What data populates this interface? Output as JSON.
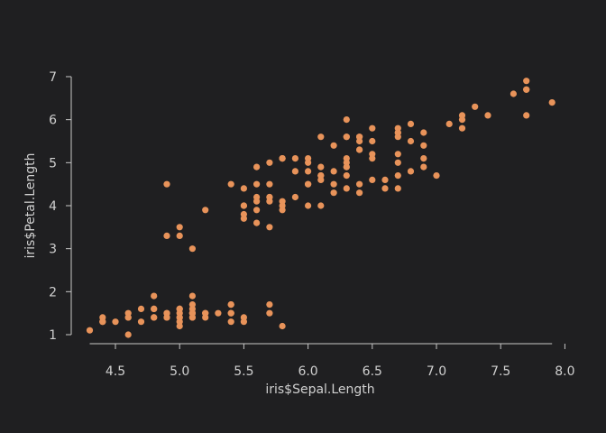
{
  "chart_data": {
    "type": "scatter",
    "xlabel": "iris$Sepal.Length",
    "ylabel": "iris$Petal.Length",
    "xlim": [
      4.3,
      7.9
    ],
    "ylim": [
      1.0,
      6.9
    ],
    "xticks": [
      "4.5",
      "5.0",
      "5.5",
      "6.0",
      "6.5",
      "7.0",
      "7.5",
      "8.0"
    ],
    "yticks": [
      "1",
      "2",
      "3",
      "4",
      "5",
      "6",
      "7"
    ],
    "grid": false,
    "point_color": "#e8935a",
    "series": [
      {
        "x": [
          5.1,
          4.9,
          4.7,
          4.6,
          5.0,
          5.4,
          4.6,
          5.0,
          4.4,
          4.9,
          5.4,
          4.8,
          4.8,
          4.3,
          5.8,
          5.7,
          5.4,
          5.1,
          5.7,
          5.1,
          5.4,
          5.1,
          4.6,
          5.1,
          4.8,
          5.0,
          5.0,
          5.2,
          5.2,
          4.7,
          4.8,
          5.4,
          5.2,
          5.5,
          4.9,
          5.0,
          5.5,
          4.9,
          4.4,
          5.1,
          5.0,
          4.5,
          4.4,
          5.0,
          5.1,
          4.8,
          5.1,
          4.6,
          5.3,
          5.0,
          7.0,
          6.4,
          6.9,
          5.5,
          6.5,
          5.7,
          6.3,
          4.9,
          6.6,
          5.2,
          5.0,
          5.9,
          6.0,
          6.1,
          5.6,
          6.7,
          5.6,
          5.8,
          6.2,
          5.6,
          5.9,
          6.1,
          6.3,
          6.1,
          6.4,
          6.6,
          6.8,
          6.7,
          6.0,
          5.7,
          5.5,
          5.5,
          5.8,
          6.0,
          5.4,
          6.0,
          6.7,
          6.3,
          5.6,
          5.5,
          5.5,
          6.1,
          5.8,
          5.0,
          5.6,
          5.7,
          5.7,
          6.2,
          5.1,
          5.7,
          6.3,
          5.8,
          7.1,
          6.3,
          6.5,
          7.6,
          4.9,
          7.3,
          6.7,
          7.2,
          6.5,
          6.4,
          6.8,
          5.7,
          5.8,
          6.4,
          6.5,
          7.7,
          7.7,
          6.0,
          6.9,
          5.6,
          7.7,
          6.3,
          6.7,
          7.2,
          6.2,
          6.1,
          6.4,
          7.2,
          7.4,
          7.9,
          6.4,
          6.3,
          6.1,
          7.7,
          6.3,
          6.4,
          6.0,
          6.9,
          6.7,
          6.9,
          5.8,
          6.8,
          6.7,
          6.7,
          6.3,
          6.5,
          6.2,
          5.9
        ],
        "y": [
          1.4,
          1.4,
          1.3,
          1.5,
          1.4,
          1.7,
          1.4,
          1.5,
          1.4,
          1.5,
          1.5,
          1.6,
          1.4,
          1.1,
          1.2,
          1.5,
          1.3,
          1.4,
          1.7,
          1.5,
          1.7,
          1.5,
          1.0,
          1.7,
          1.9,
          1.6,
          1.6,
          1.5,
          1.4,
          1.6,
          1.6,
          1.5,
          1.5,
          1.4,
          1.5,
          1.2,
          1.3,
          1.4,
          1.3,
          1.5,
          1.3,
          1.3,
          1.3,
          1.6,
          1.9,
          1.4,
          1.6,
          1.4,
          1.5,
          1.4,
          4.7,
          4.5,
          4.9,
          4.0,
          4.6,
          4.5,
          4.7,
          3.3,
          4.6,
          3.9,
          3.5,
          4.2,
          4.0,
          4.7,
          3.6,
          4.4,
          4.5,
          4.1,
          4.5,
          3.9,
          4.8,
          4.0,
          4.9,
          4.7,
          4.3,
          4.4,
          4.8,
          5.0,
          4.5,
          3.5,
          3.8,
          3.7,
          3.9,
          5.1,
          4.5,
          4.5,
          4.7,
          4.4,
          4.1,
          4.0,
          4.4,
          4.6,
          4.0,
          3.3,
          4.2,
          4.2,
          4.2,
          4.3,
          3.0,
          4.1,
          6.0,
          5.1,
          5.9,
          5.6,
          5.8,
          6.6,
          4.5,
          6.3,
          5.8,
          6.1,
          5.1,
          5.3,
          5.5,
          5.0,
          5.1,
          5.3,
          5.5,
          6.7,
          6.9,
          5.0,
          5.7,
          4.9,
          6.7,
          4.9,
          5.7,
          6.0,
          4.8,
          4.9,
          5.6,
          5.8,
          6.1,
          6.4,
          5.6,
          5.1,
          5.6,
          6.1,
          5.6,
          5.5,
          4.8,
          5.4,
          5.6,
          5.1,
          5.1,
          5.9,
          5.7,
          5.2,
          5.0,
          5.2,
          5.4,
          5.1
        ]
      }
    ]
  }
}
